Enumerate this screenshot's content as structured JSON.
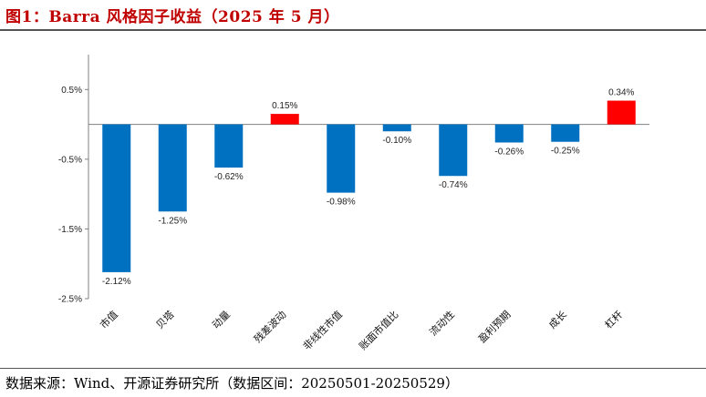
{
  "title": "图1：Barra 风格因子收益（2025 年 5 月）",
  "source": "数据来源：Wind、开源证券研究所（数据区间：20250501-20250529）",
  "colors": {
    "negative": "#0070c0",
    "positive": "#ff0000",
    "title": "#c00000"
  },
  "chart_data": {
    "type": "bar",
    "categories": [
      "市值",
      "贝塔",
      "动量",
      "残差波动",
      "非线性市值",
      "账面市值比",
      "流动性",
      "盈利预期",
      "成长",
      "杠杆"
    ],
    "values": [
      -2.12,
      -1.25,
      -0.62,
      0.15,
      -0.98,
      -0.1,
      -0.74,
      -0.26,
      -0.25,
      0.34
    ],
    "value_labels": [
      "-2.12%",
      "-1.25%",
      "-0.62%",
      "0.15%",
      "-0.98%",
      "-0.10%",
      "-0.74%",
      "-0.26%",
      "-0.25%",
      "0.34%"
    ],
    "yticks": [
      0.5,
      -0.5,
      -1.5,
      -2.5
    ],
    "ytick_labels": [
      "0.5%",
      "-0.5%",
      "-1.5%",
      "-2.5%"
    ],
    "ylim": [
      -2.5,
      1.0
    ],
    "grid": false,
    "legend": "none"
  }
}
